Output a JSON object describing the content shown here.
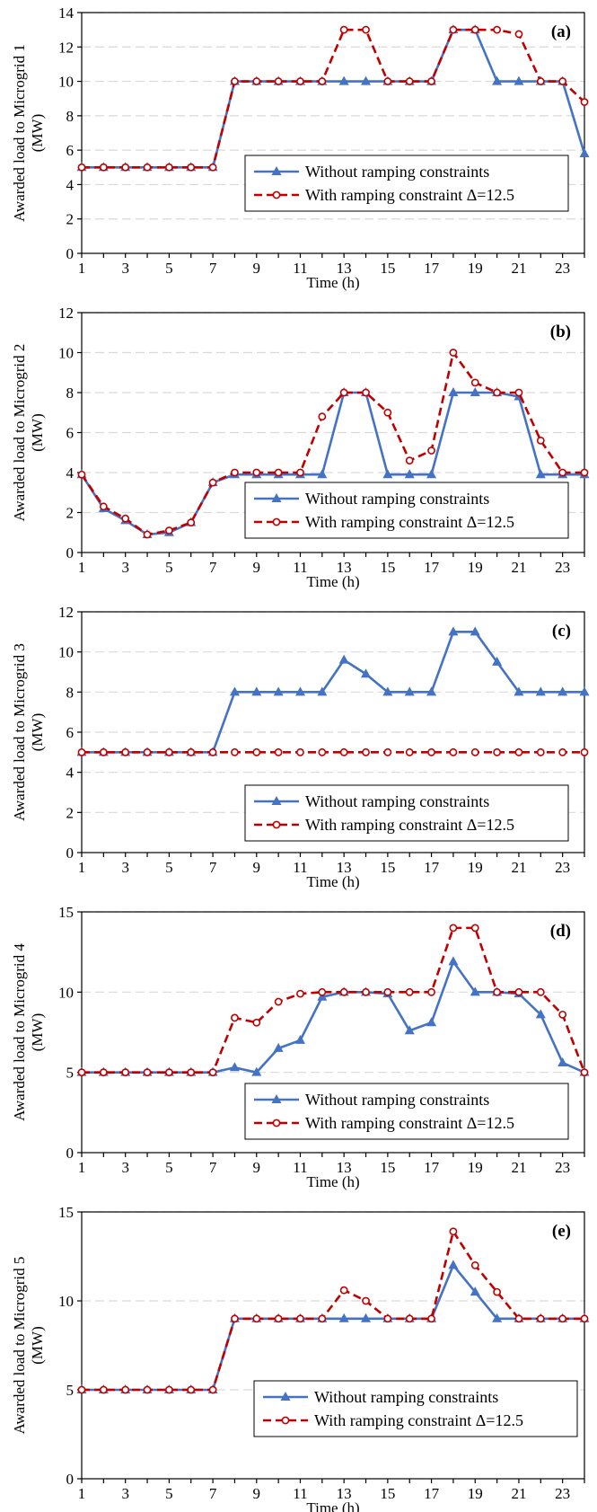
{
  "colors": {
    "without": "#4472C4",
    "with": "#C00000",
    "grid": "#D9D9D9",
    "axis": "#000000"
  },
  "chart_data": [
    {
      "type": "line",
      "panel_label": "(a)",
      "ylabel": [
        "Awarded load to Microgrid 1",
        "(MW)"
      ],
      "xlabel": "Time (h)",
      "ylim": [
        0,
        14
      ],
      "yticks": [
        0,
        2,
        4,
        6,
        8,
        10,
        12,
        14
      ],
      "xticks": [
        1,
        3,
        5,
        7,
        9,
        11,
        13,
        15,
        17,
        19,
        21,
        23
      ],
      "xlim": [
        1,
        24
      ],
      "grid": true,
      "legend_position": "lower-right",
      "x": [
        1,
        2,
        3,
        4,
        5,
        6,
        7,
        8,
        9,
        10,
        11,
        12,
        13,
        14,
        15,
        16,
        17,
        18,
        19,
        20,
        21,
        22,
        23,
        24
      ],
      "series": [
        {
          "name": "Without ramping constraints",
          "values": [
            5,
            5,
            5,
            5,
            5,
            5,
            5,
            10,
            10,
            10,
            10,
            10,
            10,
            10,
            10,
            10,
            10,
            13,
            13,
            10,
            10,
            10,
            10,
            5.8
          ]
        },
        {
          "name": "With ramping constraint Δ=12.5",
          "values": [
            5,
            5,
            5,
            5,
            5,
            5,
            5,
            10,
            10,
            10,
            10,
            10,
            13,
            13,
            10,
            10,
            10,
            13,
            13,
            13,
            12.75,
            10,
            10,
            8.8
          ]
        }
      ]
    },
    {
      "type": "line",
      "panel_label": "(b)",
      "ylabel": [
        "Awarded load to Microgrid 2",
        "(MW)"
      ],
      "xlabel": "Time (h)",
      "ylim": [
        0,
        12
      ],
      "yticks": [
        0,
        2,
        4,
        6,
        8,
        10,
        12
      ],
      "xticks": [
        1,
        3,
        5,
        7,
        9,
        11,
        13,
        15,
        17,
        19,
        21,
        23
      ],
      "xlim": [
        1,
        24
      ],
      "grid": true,
      "legend_position": "lower-right",
      "x": [
        1,
        2,
        3,
        4,
        5,
        6,
        7,
        8,
        9,
        10,
        11,
        12,
        13,
        14,
        15,
        16,
        17,
        18,
        19,
        20,
        21,
        22,
        23,
        24
      ],
      "series": [
        {
          "name": "Without ramping constraints",
          "values": [
            3.9,
            2.2,
            1.6,
            0.9,
            1.0,
            1.5,
            3.5,
            3.9,
            3.9,
            3.9,
            3.9,
            3.9,
            8,
            8,
            3.9,
            3.9,
            3.9,
            8,
            8,
            8,
            7.8,
            3.9,
            3.9,
            3.9
          ]
        },
        {
          "name": "With ramping constraint Δ=12.5",
          "values": [
            3.9,
            2.3,
            1.7,
            0.9,
            1.1,
            1.5,
            3.5,
            4,
            4,
            4,
            4,
            6.8,
            8,
            8,
            7,
            4.6,
            5.1,
            10,
            8.5,
            8,
            8,
            5.6,
            4,
            4
          ]
        }
      ]
    },
    {
      "type": "line",
      "panel_label": "(c)",
      "ylabel": [
        "Awarded load to Microgrid 3",
        "(MW)"
      ],
      "xlabel": "Time (h)",
      "ylim": [
        0,
        12
      ],
      "yticks": [
        0,
        2,
        4,
        6,
        8,
        10,
        12
      ],
      "xticks": [
        1,
        3,
        5,
        7,
        9,
        11,
        13,
        15,
        17,
        19,
        21,
        23
      ],
      "xlim": [
        1,
        24
      ],
      "grid": true,
      "legend_position": "lower-right",
      "x": [
        1,
        2,
        3,
        4,
        5,
        6,
        7,
        8,
        9,
        10,
        11,
        12,
        13,
        14,
        15,
        16,
        17,
        18,
        19,
        20,
        21,
        22,
        23,
        24
      ],
      "series": [
        {
          "name": "Without ramping constraints",
          "values": [
            5,
            5,
            5,
            5,
            5,
            5,
            5,
            8,
            8,
            8,
            8,
            8,
            9.6,
            8.9,
            8,
            8,
            8,
            11,
            11,
            9.5,
            8,
            8,
            8,
            8
          ]
        },
        {
          "name": "With ramping constraint Δ=12.5",
          "values": [
            5,
            5,
            5,
            5,
            5,
            5,
            5,
            5,
            5,
            5,
            5,
            5,
            5,
            5,
            5,
            5,
            5,
            5,
            5,
            5,
            5,
            5,
            5,
            5
          ]
        }
      ]
    },
    {
      "type": "line",
      "panel_label": "(d)",
      "ylabel": [
        "Awarded load to Microgrid 4",
        "(MW)"
      ],
      "xlabel": "Time (h)",
      "ylim": [
        0,
        15
      ],
      "yticks": [
        0,
        5,
        10,
        15
      ],
      "xticks": [
        1,
        3,
        5,
        7,
        9,
        11,
        13,
        15,
        17,
        19,
        21,
        23
      ],
      "xlim": [
        1,
        24
      ],
      "grid": true,
      "legend_position": "lower-right",
      "x": [
        1,
        2,
        3,
        4,
        5,
        6,
        7,
        8,
        9,
        10,
        11,
        12,
        13,
        14,
        15,
        16,
        17,
        18,
        19,
        20,
        21,
        22,
        23,
        24
      ],
      "series": [
        {
          "name": "Without ramping constraints",
          "values": [
            5,
            5,
            5,
            5,
            5,
            5,
            5,
            5.3,
            5,
            6.5,
            7,
            9.7,
            10,
            10,
            9.9,
            7.6,
            8.1,
            11.9,
            10,
            10,
            9.9,
            8.6,
            5.6,
            5
          ]
        },
        {
          "name": "With ramping constraint Δ=12.5",
          "values": [
            5,
            5,
            5,
            5,
            5,
            5,
            5,
            8.4,
            8.1,
            9.4,
            9.9,
            10,
            10,
            10,
            10,
            10,
            10,
            14,
            14,
            10,
            10,
            10,
            8.6,
            5
          ]
        }
      ]
    },
    {
      "type": "line",
      "panel_label": "(e)",
      "ylabel": [
        "Awarded load to Microgrid 5",
        "(MW)"
      ],
      "xlabel": "Time (h)",
      "ylim": [
        0,
        15
      ],
      "yticks": [
        0,
        5,
        10,
        15
      ],
      "xticks": [
        1,
        3,
        5,
        7,
        9,
        11,
        13,
        15,
        17,
        19,
        21,
        23
      ],
      "xlim": [
        1,
        24
      ],
      "grid": true,
      "legend_position": "lower-right",
      "x": [
        1,
        2,
        3,
        4,
        5,
        6,
        7,
        8,
        9,
        10,
        11,
        12,
        13,
        14,
        15,
        16,
        17,
        18,
        19,
        20,
        21,
        22,
        23,
        24
      ],
      "series": [
        {
          "name": "Without ramping constraints",
          "values": [
            5,
            5,
            5,
            5,
            5,
            5,
            5,
            9,
            9,
            9,
            9,
            9,
            9,
            9,
            9,
            9,
            9,
            12,
            10.5,
            9,
            9,
            9,
            9,
            9
          ]
        },
        {
          "name": "With ramping constraint Δ=12.5",
          "values": [
            5,
            5,
            5,
            5,
            5,
            5,
            5,
            9,
            9,
            9,
            9,
            9,
            10.6,
            10,
            9,
            9,
            9,
            13.9,
            12,
            10.5,
            9,
            9,
            9,
            9
          ]
        }
      ]
    }
  ]
}
